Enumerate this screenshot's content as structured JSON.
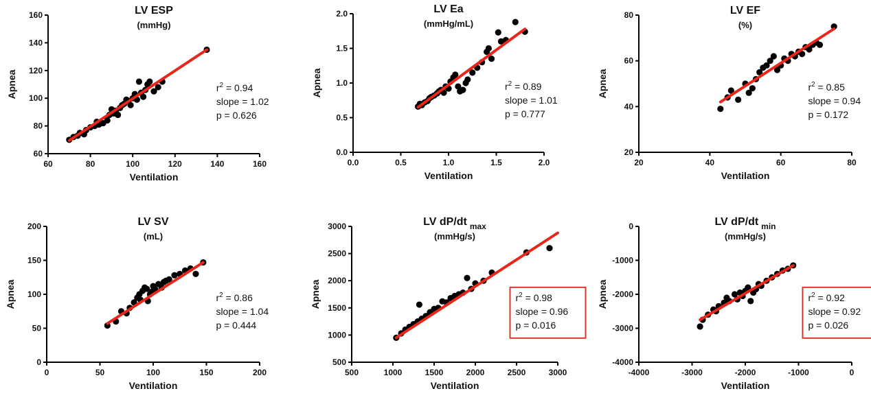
{
  "chart_data": [
    {
      "type": "scatter",
      "title": "LV ESP",
      "unit": "(mmHg)",
      "xlabel": "Ventilation",
      "ylabel": "Apnea",
      "xlim": [
        60,
        160
      ],
      "ylim": [
        60,
        160
      ],
      "xticks": [
        60,
        80,
        100,
        120,
        140,
        160
      ],
      "yticks": [
        60,
        80,
        100,
        120,
        140,
        160
      ],
      "fit": {
        "x": [
          70,
          135
        ],
        "y": [
          69.5,
          135
        ]
      },
      "stats": {
        "r2": "0.94",
        "slope": "slope = 1.02",
        "p": "p = 0.626"
      },
      "highlighted": false,
      "points": [
        [
          70,
          70
        ],
        [
          72,
          72
        ],
        [
          74,
          73
        ],
        [
          75,
          75
        ],
        [
          77,
          74
        ],
        [
          78,
          77
        ],
        [
          80,
          79
        ],
        [
          82,
          80
        ],
        [
          83,
          83
        ],
        [
          84,
          81
        ],
        [
          86,
          82
        ],
        [
          88,
          84
        ],
        [
          89,
          88
        ],
        [
          90,
          92
        ],
        [
          91,
          89
        ],
        [
          92,
          91
        ],
        [
          93,
          88
        ],
        [
          94,
          93
        ],
        [
          95,
          95
        ],
        [
          96,
          96
        ],
        [
          97,
          99
        ],
        [
          98,
          98
        ],
        [
          99,
          95
        ],
        [
          100,
          100
        ],
        [
          101,
          103
        ],
        [
          102,
          99
        ],
        [
          103,
          112
        ],
        [
          104,
          104
        ],
        [
          105,
          101
        ],
        [
          106,
          106
        ],
        [
          107,
          110
        ],
        [
          108,
          112
        ],
        [
          110,
          105
        ],
        [
          112,
          108
        ],
        [
          114,
          112
        ],
        [
          135,
          135
        ]
      ]
    },
    {
      "type": "scatter",
      "title": "LV Ea",
      "unit": "(mmHg/mL)",
      "xlabel": "Ventilation",
      "ylabel": "Apnea",
      "xlim": [
        0,
        2
      ],
      "ylim": [
        0,
        2
      ],
      "xticks": [
        "0.0",
        "0.5",
        "1.0",
        "1.5",
        "2.0"
      ],
      "yticks": [
        "0.0",
        "0.5",
        "1.0",
        "1.5",
        "2.0"
      ],
      "fit": {
        "x": [
          0.68,
          1.8
        ],
        "y": [
          0.65,
          1.78
        ]
      },
      "stats": {
        "r2": "0.89",
        "slope": "slope = 1.01",
        "p": "p = 0.777"
      },
      "highlighted": false,
      "points": [
        [
          0.68,
          0.66
        ],
        [
          0.7,
          0.7
        ],
        [
          0.72,
          0.68
        ],
        [
          0.75,
          0.72
        ],
        [
          0.78,
          0.74
        ],
        [
          0.8,
          0.78
        ],
        [
          0.82,
          0.8
        ],
        [
          0.85,
          0.82
        ],
        [
          0.88,
          0.85
        ],
        [
          0.9,
          0.88
        ],
        [
          0.92,
          0.9
        ],
        [
          0.95,
          0.86
        ],
        [
          0.97,
          0.95
        ],
        [
          1.0,
          0.92
        ],
        [
          1.02,
          1.02
        ],
        [
          1.05,
          1.08
        ],
        [
          1.07,
          1.12
        ],
        [
          1.1,
          0.95
        ],
        [
          1.12,
          0.88
        ],
        [
          1.15,
          0.9
        ],
        [
          1.18,
          1.0
        ],
        [
          1.2,
          1.05
        ],
        [
          1.25,
          1.15
        ],
        [
          1.3,
          1.22
        ],
        [
          1.35,
          1.3
        ],
        [
          1.4,
          1.45
        ],
        [
          1.42,
          1.5
        ],
        [
          1.45,
          1.35
        ],
        [
          1.52,
          1.73
        ],
        [
          1.55,
          1.6
        ],
        [
          1.6,
          1.62
        ],
        [
          1.7,
          1.88
        ],
        [
          1.8,
          1.74
        ]
      ]
    },
    {
      "type": "scatter",
      "title": "LV EF",
      "unit": "(%)",
      "xlabel": "Ventilation",
      "ylabel": "Apnea",
      "xlim": [
        20,
        80
      ],
      "ylim": [
        20,
        80
      ],
      "xticks": [
        20,
        40,
        60,
        80
      ],
      "yticks": [
        20,
        40,
        60,
        80
      ],
      "fit": {
        "x": [
          43,
          75
        ],
        "y": [
          42,
          74
        ]
      },
      "stats": {
        "r2": "0.85",
        "slope": "slope = 0.94",
        "p": "p = 0.172"
      },
      "highlighted": false,
      "points": [
        [
          43,
          39
        ],
        [
          45,
          44
        ],
        [
          46,
          47
        ],
        [
          48,
          43
        ],
        [
          50,
          50
        ],
        [
          51,
          46
        ],
        [
          52,
          48
        ],
        [
          53,
          52
        ],
        [
          54,
          55
        ],
        [
          55,
          57
        ],
        [
          56,
          58
        ],
        [
          57,
          60
        ],
        [
          58,
          62
        ],
        [
          59,
          56
        ],
        [
          60,
          58
        ],
        [
          61,
          61
        ],
        [
          62,
          60
        ],
        [
          63,
          63
        ],
        [
          64,
          62
        ],
        [
          65,
          64
        ],
        [
          66,
          63
        ],
        [
          67,
          66
        ],
        [
          68,
          65
        ],
        [
          69,
          67
        ],
        [
          70,
          68
        ],
        [
          71,
          67
        ],
        [
          75,
          75
        ]
      ]
    },
    {
      "type": "scatter",
      "title": "LV SV",
      "unit": "(mL)",
      "xlabel": "Ventilation",
      "ylabel": "Apnea",
      "xlim": [
        0,
        200
      ],
      "ylim": [
        0,
        200
      ],
      "xticks": [
        0,
        50,
        100,
        150,
        200
      ],
      "yticks": [
        0,
        50,
        100,
        150,
        200
      ],
      "fit": {
        "x": [
          57,
          147
        ],
        "y": [
          57,
          147
        ]
      },
      "stats": {
        "r2": "0.86",
        "slope": "slope = 1.04",
        "p": "p = 0.444"
      },
      "highlighted": false,
      "points": [
        [
          57,
          54
        ],
        [
          65,
          60
        ],
        [
          70,
          75
        ],
        [
          75,
          72
        ],
        [
          78,
          80
        ],
        [
          82,
          88
        ],
        [
          85,
          95
        ],
        [
          87,
          100
        ],
        [
          88,
          92
        ],
        [
          90,
          105
        ],
        [
          92,
          110
        ],
        [
          94,
          108
        ],
        [
          95,
          90
        ],
        [
          97,
          100
        ],
        [
          99,
          104
        ],
        [
          100,
          112
        ],
        [
          102,
          107
        ],
        [
          105,
          115
        ],
        [
          108,
          110
        ],
        [
          110,
          118
        ],
        [
          112,
          120
        ],
        [
          115,
          122
        ],
        [
          120,
          128
        ],
        [
          125,
          130
        ],
        [
          130,
          135
        ],
        [
          135,
          138
        ],
        [
          140,
          130
        ],
        [
          147,
          147
        ]
      ]
    },
    {
      "type": "scatter",
      "title": "LV dP/dt",
      "title_sub": "max",
      "unit": "(mmHg/s)",
      "xlabel": "Ventilation",
      "ylabel": "Apnea",
      "xlim": [
        500,
        3000
      ],
      "ylim": [
        500,
        3000
      ],
      "xticks": [
        500,
        1000,
        1500,
        2000,
        2500,
        3000
      ],
      "yticks": [
        500,
        1000,
        1500,
        2000,
        2500,
        3000
      ],
      "fit": {
        "x": [
          1040,
          3000
        ],
        "y": [
          950,
          2880
        ]
      },
      "stats": {
        "r2": "0.98",
        "slope": "slope = 0.96",
        "p": "p = 0.016"
      },
      "highlighted": true,
      "points": [
        [
          1040,
          950
        ],
        [
          1100,
          1030
        ],
        [
          1150,
          1100
        ],
        [
          1200,
          1150
        ],
        [
          1250,
          1200
        ],
        [
          1300,
          1250
        ],
        [
          1320,
          1560
        ],
        [
          1350,
          1300
        ],
        [
          1400,
          1350
        ],
        [
          1450,
          1420
        ],
        [
          1500,
          1480
        ],
        [
          1550,
          1500
        ],
        [
          1600,
          1620
        ],
        [
          1650,
          1600
        ],
        [
          1700,
          1680
        ],
        [
          1750,
          1720
        ],
        [
          1800,
          1750
        ],
        [
          1850,
          1780
        ],
        [
          1900,
          2050
        ],
        [
          1950,
          1850
        ],
        [
          2000,
          1950
        ],
        [
          2100,
          2000
        ],
        [
          2200,
          2150
        ],
        [
          2620,
          2520
        ],
        [
          2900,
          2600
        ]
      ]
    },
    {
      "type": "scatter",
      "title": "LV dP/dt",
      "title_sub": "min",
      "unit": "(mmHg/s)",
      "xlabel": "Ventilation",
      "ylabel": "Apnea",
      "xlim": [
        -4000,
        0
      ],
      "ylim": [
        -4000,
        0
      ],
      "xticks": [
        -4000,
        -3000,
        -2000,
        -1000,
        0
      ],
      "yticks": [
        -4000,
        -3000,
        -2000,
        -1000,
        0
      ],
      "fit": {
        "x": [
          -2850,
          -1100
        ],
        "y": [
          -2750,
          -1150
        ]
      },
      "stats": {
        "r2": "0.92",
        "slope": "slope = 0.92",
        "p": "p = 0.026"
      },
      "highlighted": true,
      "points": [
        [
          -2850,
          -2950
        ],
        [
          -2800,
          -2750
        ],
        [
          -2700,
          -2600
        ],
        [
          -2600,
          -2450
        ],
        [
          -2550,
          -2500
        ],
        [
          -2500,
          -2350
        ],
        [
          -2400,
          -2250
        ],
        [
          -2350,
          -2100
        ],
        [
          -2300,
          -2200
        ],
        [
          -2200,
          -2000
        ],
        [
          -2150,
          -2150
        ],
        [
          -2100,
          -1950
        ],
        [
          -2050,
          -2050
        ],
        [
          -2000,
          -1900
        ],
        [
          -1950,
          -1800
        ],
        [
          -1900,
          -2200
        ],
        [
          -1850,
          -1950
        ],
        [
          -1800,
          -1850
        ],
        [
          -1750,
          -1700
        ],
        [
          -1700,
          -1750
        ],
        [
          -1600,
          -1600
        ],
        [
          -1500,
          -1500
        ],
        [
          -1400,
          -1400
        ],
        [
          -1300,
          -1300
        ],
        [
          -1200,
          -1250
        ],
        [
          -1100,
          -1150
        ]
      ]
    }
  ]
}
